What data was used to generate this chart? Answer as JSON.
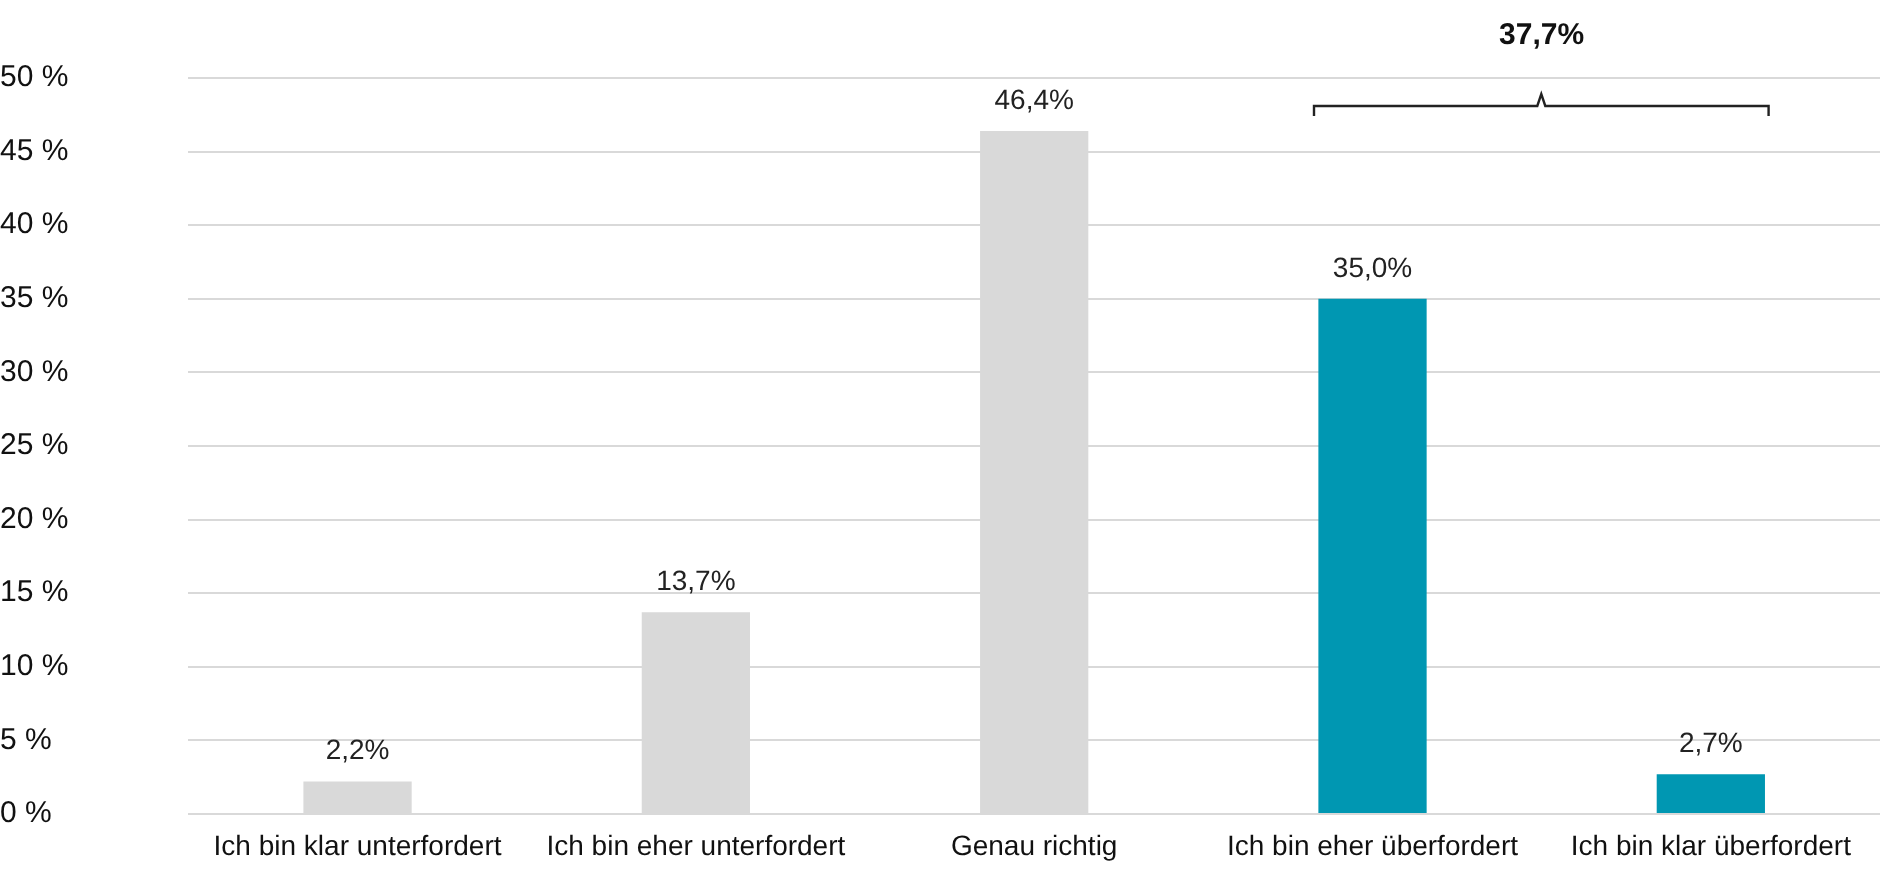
{
  "chart_data": {
    "type": "bar",
    "categories": [
      "Ich bin klar unterfordert",
      "Ich bin eher unterfordert",
      "Genau richtig",
      "Ich bin eher überfordert",
      "Ich bin klar überfordert"
    ],
    "values": [
      2.2,
      13.7,
      46.4,
      35.0,
      2.7
    ],
    "colors": [
      "#d9d9d9",
      "#d9d9d9",
      "#d9d9d9",
      "#0097b2",
      "#0097b2"
    ],
    "value_labels": [
      "2,2%",
      "13,7%",
      "46,4%",
      "35,0%",
      "2,7%"
    ],
    "ylim": [
      0,
      50
    ],
    "yticks": [
      {
        "value": 0,
        "label": "0 %"
      },
      {
        "value": 5,
        "label": "5 %"
      },
      {
        "value": 10,
        "label": "10 %"
      },
      {
        "value": 15,
        "label": "15 %"
      },
      {
        "value": 20,
        "label": "20 %"
      },
      {
        "value": 25,
        "label": "25 %"
      },
      {
        "value": 30,
        "label": "30 %"
      },
      {
        "value": 35,
        "label": "35 %"
      },
      {
        "value": 40,
        "label": "40 %"
      },
      {
        "value": 45,
        "label": "45 %"
      },
      {
        "value": 50,
        "label": "50 %"
      }
    ],
    "grid": "y",
    "legend": false,
    "annotations": [
      "37,7%"
    ]
  }
}
